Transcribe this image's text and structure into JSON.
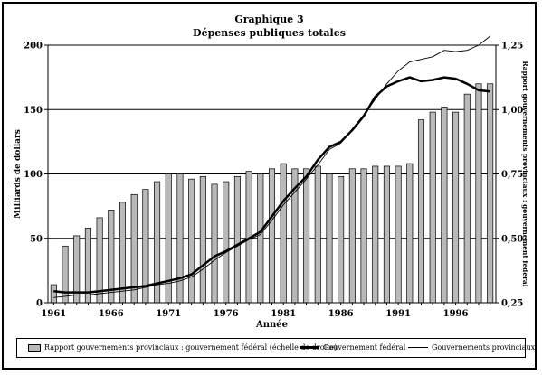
{
  "header": {
    "title": "Graphique 3",
    "subtitle": "Dépenses publiques totales"
  },
  "chart_data": {
    "type": "bar",
    "xlabel": "Année",
    "ylabel_left": "Milliards de dollars",
    "ylabel_right": "Rapport gouvernements provinciaux : gouvernement fédéral",
    "ylim_left": [
      0,
      200
    ],
    "ylim_right": [
      0.25,
      1.25
    ],
    "yticks_left": [
      "0",
      "50",
      "100",
      "150",
      "200"
    ],
    "yticks_right": [
      "0,25",
      "0,50",
      "0,75",
      "1,00",
      "1,25"
    ],
    "xticks": [
      "1961",
      "1966",
      "1971",
      "1976",
      "1981",
      "1986",
      "1991",
      "1996"
    ],
    "grid": "horizontal",
    "x": [
      1961,
      1962,
      1963,
      1964,
      1965,
      1966,
      1967,
      1968,
      1969,
      1970,
      1971,
      1972,
      1973,
      1974,
      1975,
      1976,
      1977,
      1978,
      1979,
      1980,
      1981,
      1982,
      1983,
      1984,
      1985,
      1986,
      1987,
      1988,
      1989,
      1990,
      1991,
      1992,
      1993,
      1994,
      1995,
      1996,
      1997,
      1998,
      1999
    ],
    "series": [
      {
        "name": "Rapport gouvernements provinciaux : gouvernement fédéral (échelle de droite)",
        "kind": "bar",
        "axis": "right",
        "color": "#b9b9b9",
        "values": [
          0.32,
          0.47,
          0.51,
          0.54,
          0.58,
          0.61,
          0.64,
          0.67,
          0.69,
          0.72,
          0.75,
          0.75,
          0.73,
          0.74,
          0.71,
          0.72,
          0.74,
          0.76,
          0.75,
          0.77,
          0.79,
          0.77,
          0.77,
          0.78,
          0.75,
          0.74,
          0.77,
          0.77,
          0.78,
          0.78,
          0.78,
          0.79,
          0.96,
          0.99,
          1.01,
          0.99,
          1.06,
          1.1,
          1.1
        ]
      },
      {
        "name": "Gouvernement fédéral",
        "kind": "line",
        "axis": "left",
        "color": "#000000",
        "values": [
          9,
          8,
          8,
          8,
          9,
          10,
          11,
          12,
          13,
          15,
          17,
          19,
          22,
          29,
          36,
          40,
          45,
          50,
          55,
          67,
          79,
          89,
          98,
          111,
          121,
          125,
          134,
          145,
          160,
          168,
          172,
          175,
          172,
          173,
          175,
          174,
          170,
          165,
          164
        ]
      },
      {
        "name": "Gouvernements provinciaux",
        "kind": "line",
        "axis": "left",
        "color": "#000000",
        "values": [
          4,
          5,
          6,
          6,
          7,
          8,
          9,
          10,
          12,
          14,
          15,
          17,
          20,
          26,
          33,
          39,
          44,
          49,
          53,
          64,
          76,
          86,
          96,
          107,
          119,
          124,
          135,
          146,
          158,
          170,
          180,
          187,
          189,
          191,
          196,
          195,
          196,
          200,
          207
        ]
      }
    ]
  },
  "legend": {
    "bar_label": "Rapport gouvernements provinciaux : gouvernement fédéral (échelle de droite)",
    "federal_label": "Gouvernement fédéral",
    "provincial_label": "Gouvernements provinciaux"
  }
}
